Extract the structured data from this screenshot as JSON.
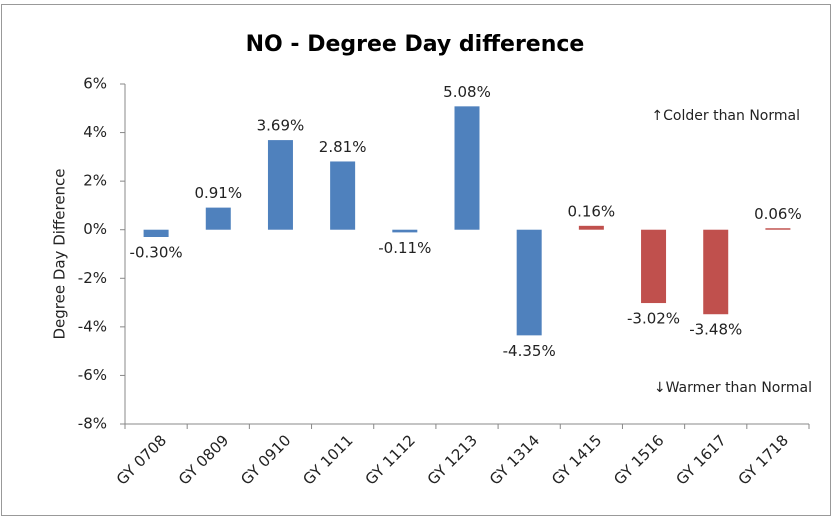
{
  "chart_data": {
    "type": "bar",
    "title": "NO - Degree Day difference",
    "y_label": "Degree Day Difference",
    "annotations": [
      "↑Colder than Normal",
      "↓Warmer than Normal"
    ],
    "categories": [
      "GY 0708",
      "GY 0809",
      "GY 0910",
      "GY 1011",
      "GY 1112",
      "GY 1213",
      "GY 1314",
      "GY 1415",
      "GY 1516",
      "GY 1617",
      "GY 1718"
    ],
    "values": [
      -0.3,
      0.91,
      3.69,
      2.81,
      -0.11,
      5.08,
      -4.35,
      0.16,
      -3.02,
      -3.48,
      0.06
    ],
    "value_labels": [
      "-0.30%",
      "0.91%",
      "3.69%",
      "2.81%",
      "-0.11%",
      "5.08%",
      "-4.35%",
      "0.16%",
      "-3.02%",
      "-3.48%",
      "0.06%"
    ],
    "colors": [
      "#4f81bd",
      "#4f81bd",
      "#4f81bd",
      "#4f81bd",
      "#4f81bd",
      "#4f81bd",
      "#4f81bd",
      "#c0504d",
      "#c0504d",
      "#c0504d",
      "#c0504d"
    ],
    "ylim": [
      -8,
      6
    ],
    "yticks": [
      {
        "value": -8,
        "label": "-8%"
      },
      {
        "value": -6,
        "label": "-6%"
      },
      {
        "value": -4,
        "label": "-4%"
      },
      {
        "value": -2,
        "label": "-2%"
      },
      {
        "value": 0,
        "label": "0%"
      },
      {
        "value": 2,
        "label": "2%"
      },
      {
        "value": 4,
        "label": "4%"
      },
      {
        "value": 6,
        "label": "6%"
      }
    ],
    "grid": false
  }
}
